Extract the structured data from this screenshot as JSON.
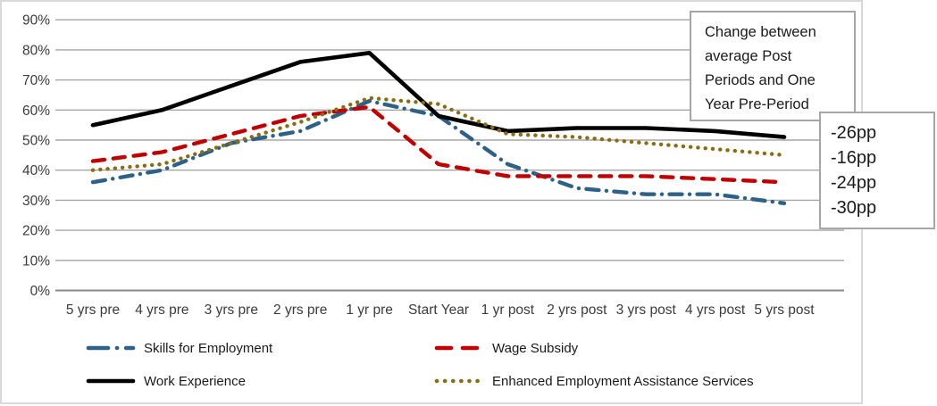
{
  "chart_data": {
    "type": "line",
    "categories": [
      "5 yrs pre",
      "4 yrs pre",
      "3 yrs pre",
      "2 yrs pre",
      "1 yr pre",
      "Start Year",
      "1 yr post",
      "2 yrs post",
      "3 yrs post",
      "4 yrs post",
      "5 yrs post"
    ],
    "series": [
      {
        "name": "Skills for Employment",
        "color": "#2D6187",
        "style": "dashdot",
        "values": [
          36,
          40,
          49,
          53,
          63,
          58,
          42,
          34,
          32,
          32,
          29
        ]
      },
      {
        "name": "Wage Subsidy",
        "color": "#C00000",
        "style": "dash",
        "values": [
          43,
          46,
          52,
          58,
          61,
          42,
          38,
          38,
          38,
          37,
          36
        ]
      },
      {
        "name": "Work Experience",
        "color": "#000000",
        "style": "solid",
        "values": [
          55,
          60,
          68,
          76,
          79,
          58,
          53,
          54,
          54,
          53,
          51
        ]
      },
      {
        "name": "Enhanced Employment Assistance Services",
        "color": "#8A6D12",
        "style": "dot",
        "values": [
          40,
          42,
          49,
          56,
          64,
          62,
          52,
          51,
          49,
          47,
          45
        ]
      }
    ],
    "ylim": [
      0,
      90
    ],
    "y_tick_step": 10,
    "y_tick_labels": [
      "0%",
      "10%",
      "20%",
      "30%",
      "40%",
      "50%",
      "60%",
      "70%",
      "80%",
      "90%"
    ],
    "xlabel": "",
    "ylabel": "",
    "title": "",
    "grid": "horizontal",
    "legend_position": "bottom"
  },
  "callout": {
    "note": "Change between\naverage Post\nPeriods and One\nYear Pre-Period",
    "values": [
      "-26pp",
      "-16pp",
      "-24pp",
      "-30pp"
    ]
  },
  "colors": {
    "gridline": "#A6A6A6",
    "axis_line": "#898989",
    "frame_border": "#D9D9D9",
    "box_border": "#A6A6A6",
    "tick_text": "#3B3B3B"
  }
}
